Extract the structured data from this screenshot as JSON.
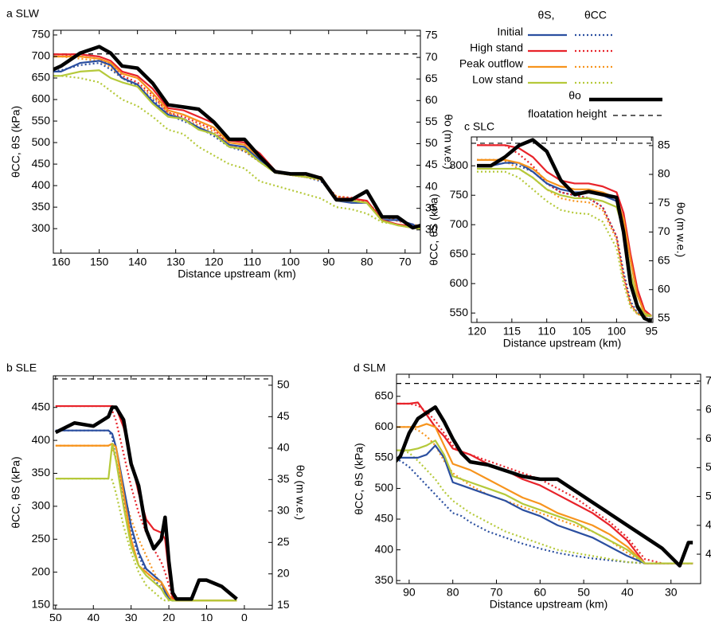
{
  "legend": {
    "columns": [
      "θS,",
      "θCC"
    ],
    "states": [
      {
        "name": "Initial",
        "color": "#2b4fa0"
      },
      {
        "name": "High stand",
        "color": "#e8232a"
      },
      {
        "name": "Peak outflow",
        "color": "#f7941d"
      },
      {
        "name": "Low stand",
        "color": "#b5c93a"
      }
    ],
    "theta0": {
      "name": "θo",
      "color": "#000000"
    },
    "floatation": {
      "name": "floatation height",
      "color": "#000000"
    }
  },
  "chart_data": [
    {
      "type": "line",
      "title": "a  SLW",
      "xlabel": "Distance upstream (km)",
      "ylabel": "θCC, θS (kPa)",
      "y2label": "θo (m w.e.)",
      "x": [
        165,
        160,
        155,
        150,
        147,
        144,
        140,
        136,
        132,
        128,
        124,
        120,
        116,
        112,
        108,
        104,
        100,
        96,
        92,
        88,
        84,
        80,
        76,
        72,
        68,
        66
      ],
      "xlim": [
        162,
        66
      ],
      "xticks": [
        160,
        150,
        140,
        130,
        120,
        110,
        100,
        90,
        80,
        70
      ],
      "ylim": [
        243,
        761
      ],
      "yticks": [
        300,
        350,
        400,
        450,
        500,
        550,
        600,
        650,
        700,
        750
      ],
      "y2lim": [
        24.6,
        76.3
      ],
      "y2ticks": [
        30,
        35,
        40,
        45,
        50,
        55,
        60,
        65,
        70,
        75
      ],
      "series": [
        {
          "theta_s": [
            665,
            665,
            685,
            690,
            680,
            650,
            635,
            595,
            565,
            555,
            535,
            520,
            495,
            490,
            460,
            430,
            425,
            420,
            420,
            365,
            360,
            360,
            320,
            320,
            310,
            300
          ],
          "theta_cc": [
            665,
            668,
            680,
            685,
            670,
            650,
            630,
            600,
            565,
            550,
            535,
            515,
            490,
            480,
            455,
            430,
            425,
            420,
            410,
            375,
            370,
            360,
            330,
            320,
            310,
            305
          ]
        },
        {
          "theta_s": [
            705,
            705,
            705,
            700,
            690,
            665,
            655,
            625,
            580,
            575,
            560,
            545,
            505,
            500,
            475,
            435,
            425,
            420,
            420,
            370,
            370,
            365,
            320,
            310,
            305,
            300
          ],
          "theta_cc": [
            705,
            705,
            700,
            695,
            680,
            655,
            640,
            610,
            570,
            560,
            545,
            530,
            495,
            485,
            460,
            435,
            425,
            420,
            415,
            375,
            372,
            360,
            330,
            318,
            310,
            305
          ]
        },
        {
          "theta_s": [
            700,
            700,
            700,
            695,
            685,
            660,
            650,
            615,
            575,
            565,
            550,
            535,
            500,
            495,
            465,
            430,
            425,
            420,
            420,
            365,
            365,
            360,
            318,
            308,
            302,
            300
          ],
          "theta_cc": [
            700,
            700,
            695,
            690,
            675,
            650,
            635,
            605,
            570,
            555,
            540,
            525,
            495,
            480,
            455,
            432,
            425,
            420,
            412,
            375,
            370,
            360,
            330,
            318,
            310,
            305
          ]
        },
        {
          "theta_s": [
            655,
            655,
            665,
            668,
            650,
            640,
            630,
            590,
            560,
            555,
            530,
            520,
            490,
            485,
            455,
            430,
            425,
            420,
            415,
            365,
            365,
            360,
            318,
            308,
            302,
            300
          ],
          "theta_cc": [
            655,
            655,
            650,
            640,
            620,
            600,
            585,
            560,
            530,
            520,
            490,
            470,
            450,
            440,
            410,
            400,
            390,
            380,
            370,
            350,
            345,
            335,
            315,
            310,
            305,
            302
          ]
        }
      ],
      "theta0": [
        66,
        68,
        71,
        72.5,
        71,
        68,
        67.5,
        64,
        59,
        58.5,
        58,
        55,
        51,
        51,
        47,
        43.5,
        43,
        43,
        42,
        37,
        37,
        39,
        33,
        33,
        30.5,
        31
      ],
      "floatation": 70.8
    },
    {
      "type": "line",
      "title": "c SLC",
      "xlabel": "Distance upstream (km)",
      "ylabel": "θCC, θS (kPa)",
      "y2label": "θo (m w.e.)",
      "x": [
        120,
        118,
        116,
        114,
        112,
        110,
        108,
        106,
        104,
        102,
        100,
        99,
        98,
        97,
        96,
        95
      ],
      "xlim": [
        120.8,
        94.8
      ],
      "xticks": [
        120,
        115,
        110,
        105,
        100,
        95
      ],
      "ylim": [
        534,
        849
      ],
      "yticks": [
        550,
        600,
        650,
        700,
        750,
        800
      ],
      "y2lim": [
        54.3,
        86.5
      ],
      "y2ticks": [
        55,
        60,
        65,
        70,
        75,
        80,
        85
      ],
      "series": [
        {
          "theta_s": [
            800,
            800,
            805,
            805,
            790,
            770,
            760,
            755,
            755,
            750,
            740,
            700,
            640,
            580,
            550,
            545
          ],
          "theta_cc": [
            810,
            810,
            810,
            800,
            790,
            770,
            755,
            750,
            745,
            730,
            680,
            620,
            570,
            550,
            545,
            545
          ]
        },
        {
          "theta_s": [
            835,
            835,
            835,
            830,
            815,
            790,
            775,
            770,
            770,
            765,
            755,
            720,
            650,
            590,
            555,
            545
          ],
          "theta_cc": [
            835,
            835,
            835,
            820,
            800,
            770,
            755,
            750,
            745,
            730,
            680,
            615,
            565,
            548,
            545,
            545
          ]
        },
        {
          "theta_s": [
            810,
            810,
            810,
            805,
            795,
            775,
            765,
            760,
            760,
            755,
            745,
            710,
            640,
            580,
            550,
            545
          ],
          "theta_cc": [
            810,
            810,
            808,
            795,
            780,
            760,
            745,
            740,
            738,
            725,
            675,
            610,
            565,
            548,
            545,
            545
          ]
        },
        {
          "theta_s": [
            795,
            795,
            795,
            795,
            780,
            760,
            750,
            745,
            745,
            740,
            730,
            690,
            620,
            565,
            548,
            545
          ],
          "theta_cc": [
            790,
            790,
            790,
            780,
            760,
            740,
            725,
            720,
            718,
            705,
            660,
            600,
            560,
            548,
            545,
            545
          ]
        }
      ],
      "theta0": [
        81.5,
        81.5,
        83,
        85,
        86,
        84,
        79,
        76.5,
        77,
        76.5,
        76,
        70,
        61,
        57,
        55,
        54.5
      ],
      "floatation": 85.4
    },
    {
      "type": "line",
      "title": "b SLE",
      "xlabel": "Distance upstream (km)",
      "ylabel": "θCC, θS (kPa)",
      "y2label": "θo (m w.e.)",
      "x": [
        50,
        45,
        40,
        36,
        35,
        34,
        32,
        30,
        28,
        26,
        24,
        22,
        21,
        20,
        19,
        18,
        16,
        14,
        12,
        10,
        8,
        6,
        4,
        2
      ],
      "xlim": [
        50.6,
        -7.4
      ],
      "xticks": [
        50,
        40,
        30,
        20,
        10,
        0
      ],
      "ylim": [
        144,
        498
      ],
      "yticks": [
        150,
        200,
        250,
        300,
        350,
        400,
        450
      ],
      "y2lim": [
        14.4,
        51.5
      ],
      "y2ticks": [
        15,
        20,
        25,
        30,
        35,
        40,
        45,
        50
      ],
      "series": [
        {
          "theta_s": [
            415,
            415,
            415,
            415,
            410,
            390,
            330,
            270,
            230,
            205,
            195,
            185,
            170,
            160,
            157,
            157,
            157,
            157,
            157,
            157,
            157,
            157,
            157,
            157
          ],
          "theta_cc": [
            415,
            415,
            415,
            415,
            405,
            370,
            310,
            260,
            225,
            200,
            190,
            175,
            165,
            158,
            157,
            157,
            157,
            157,
            157,
            157,
            157,
            157,
            157,
            157
          ]
        },
        {
          "theta_s": [
            452,
            452,
            452,
            452,
            452,
            450,
            420,
            370,
            320,
            280,
            265,
            260,
            250,
            200,
            160,
            157,
            157,
            157,
            157,
            157,
            157,
            157,
            157,
            157
          ],
          "theta_cc": [
            452,
            452,
            452,
            452,
            445,
            430,
            380,
            330,
            290,
            260,
            235,
            215,
            200,
            180,
            160,
            157,
            157,
            157,
            157,
            157,
            157,
            157,
            157,
            157
          ]
        },
        {
          "theta_s": [
            392,
            392,
            392,
            392,
            395,
            390,
            320,
            250,
            210,
            200,
            190,
            185,
            175,
            165,
            158,
            157,
            157,
            157,
            157,
            157,
            157,
            157,
            157,
            157
          ],
          "theta_cc": [
            392,
            392,
            392,
            392,
            390,
            370,
            320,
            280,
            250,
            225,
            200,
            180,
            170,
            160,
            157,
            157,
            157,
            157,
            157,
            157,
            157,
            157,
            157,
            157
          ]
        },
        {
          "theta_s": [
            342,
            342,
            342,
            342,
            395,
            370,
            300,
            240,
            210,
            195,
            185,
            175,
            165,
            158,
            157,
            157,
            157,
            157,
            157,
            157,
            157,
            157,
            157,
            157
          ],
          "theta_cc": [
            342,
            342,
            342,
            342,
            340,
            320,
            270,
            230,
            200,
            180,
            170,
            160,
            157,
            157,
            157,
            157,
            157,
            157,
            157,
            157,
            157,
            157,
            157,
            157
          ]
        }
      ],
      "theta0": [
        42.5,
        44,
        43.5,
        45,
        46.5,
        46.5,
        44.5,
        37.5,
        34,
        27,
        24,
        25.5,
        29,
        22,
        17,
        16,
        16,
        16,
        19,
        19,
        18.5,
        18,
        17,
        16
      ],
      "floatation": 51.0
    },
    {
      "type": "line",
      "title": "d SLM",
      "xlabel": "Distance upstream (km)",
      "ylabel": "θCC, θS (kPa)",
      "y2label": "θo (m w.e.)",
      "x": [
        95,
        92,
        90,
        88,
        86,
        84,
        82,
        80,
        78,
        76,
        72,
        68,
        64,
        60,
        56,
        52,
        48,
        44,
        40,
        36,
        32,
        30,
        28,
        26,
        25
      ],
      "xlim": [
        92.9,
        23.2
      ],
      "xticks": [
        90,
        80,
        70,
        60,
        50,
        40,
        30
      ],
      "ylim": [
        345,
        686
      ],
      "yticks": [
        350,
        400,
        450,
        500,
        550,
        600,
        650
      ],
      "y2lim": [
        34.9,
        71.2
      ],
      "y2ticks": [
        40,
        45,
        50,
        55,
        60,
        65,
        70
      ],
      "series": [
        {
          "theta_s": [
            550,
            550,
            550,
            550,
            555,
            570,
            550,
            510,
            505,
            500,
            490,
            480,
            465,
            455,
            440,
            430,
            420,
            405,
            390,
            378,
            378,
            378,
            378,
            378,
            378
          ],
          "theta_cc": [
            550,
            545,
            535,
            520,
            505,
            490,
            475,
            460,
            455,
            445,
            430,
            420,
            410,
            402,
            395,
            390,
            386,
            383,
            380,
            378,
            378,
            378,
            378,
            378,
            378
          ]
        },
        {
          "theta_s": [
            638,
            638,
            638,
            640,
            620,
            600,
            585,
            565,
            560,
            555,
            540,
            530,
            515,
            505,
            490,
            475,
            460,
            440,
            415,
            378,
            378,
            378,
            378,
            378,
            378
          ],
          "theta_cc": [
            638,
            638,
            638,
            635,
            625,
            610,
            590,
            570,
            560,
            555,
            545,
            535,
            525,
            515,
            500,
            485,
            465,
            445,
            420,
            385,
            378,
            378,
            378,
            378,
            378
          ]
        },
        {
          "theta_s": [
            600,
            600,
            600,
            600,
            605,
            600,
            570,
            540,
            535,
            530,
            515,
            500,
            485,
            475,
            460,
            450,
            440,
            425,
            405,
            378,
            378,
            378,
            378,
            378,
            378
          ],
          "theta_cc": [
            600,
            600,
            600,
            595,
            585,
            570,
            545,
            525,
            515,
            505,
            490,
            480,
            470,
            460,
            450,
            440,
            430,
            415,
            395,
            378,
            378,
            378,
            378,
            378,
            378
          ]
        },
        {
          "theta_s": [
            562,
            562,
            562,
            565,
            570,
            578,
            555,
            520,
            515,
            510,
            500,
            490,
            475,
            465,
            455,
            445,
            430,
            415,
            400,
            378,
            378,
            378,
            378,
            378,
            378
          ],
          "theta_cc": [
            562,
            562,
            558,
            545,
            530,
            515,
            495,
            480,
            470,
            460,
            445,
            430,
            420,
            410,
            400,
            395,
            390,
            385,
            380,
            378,
            378,
            378,
            378,
            378,
            378
          ]
        }
      ],
      "theta0": [
        54.5,
        57,
        61,
        63.5,
        64.5,
        65.5,
        63,
        60,
        57.5,
        56,
        55.5,
        54.5,
        53.5,
        53,
        53,
        51,
        49,
        47,
        45,
        43,
        41,
        39.5,
        38,
        42,
        42
      ],
      "floatation": 69.6
    }
  ]
}
